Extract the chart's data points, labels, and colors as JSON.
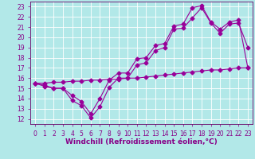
{
  "xlabel": "Windchill (Refroidissement éolien,°C)",
  "xlim": [
    -0.5,
    23.5
  ],
  "ylim": [
    11.5,
    23.5
  ],
  "xticks": [
    0,
    1,
    2,
    3,
    4,
    5,
    6,
    7,
    8,
    9,
    10,
    11,
    12,
    13,
    14,
    15,
    16,
    17,
    18,
    19,
    20,
    21,
    22,
    23
  ],
  "yticks": [
    12,
    13,
    14,
    15,
    16,
    17,
    18,
    19,
    20,
    21,
    22,
    23
  ],
  "bg_color": "#b2e8e8",
  "grid_color": "#ffffff",
  "line_color": "#990099",
  "line1_x": [
    0,
    1,
    2,
    3,
    4,
    5,
    6,
    7,
    8,
    9,
    10,
    11,
    12,
    13,
    14,
    15,
    16,
    17,
    18,
    19,
    20,
    21,
    22,
    23
  ],
  "line1_y": [
    15.5,
    15.2,
    15.0,
    15.0,
    13.8,
    13.3,
    12.1,
    13.2,
    15.1,
    16.0,
    16.0,
    17.3,
    17.5,
    18.7,
    19.0,
    20.8,
    20.9,
    21.9,
    22.9,
    21.4,
    20.4,
    21.3,
    21.4,
    19.0
  ],
  "line2_x": [
    0,
    1,
    2,
    3,
    4,
    5,
    6,
    7,
    8,
    9,
    10,
    11,
    12,
    13,
    14,
    15,
    16,
    17,
    18,
    19,
    20,
    21,
    22,
    23
  ],
  "line2_y": [
    15.5,
    15.3,
    15.0,
    15.0,
    14.3,
    13.7,
    12.5,
    14.0,
    15.8,
    16.5,
    16.5,
    17.9,
    18.0,
    19.2,
    19.4,
    21.1,
    21.3,
    22.9,
    23.1,
    21.5,
    20.8,
    21.5,
    21.7,
    17.0
  ],
  "line3_x": [
    0,
    1,
    2,
    3,
    4,
    5,
    6,
    7,
    8,
    9,
    10,
    11,
    12,
    13,
    14,
    15,
    16,
    17,
    18,
    19,
    20,
    21,
    22,
    23
  ],
  "line3_y": [
    15.5,
    15.5,
    15.6,
    15.6,
    15.7,
    15.7,
    15.8,
    15.8,
    15.9,
    15.9,
    16.0,
    16.0,
    16.1,
    16.2,
    16.3,
    16.4,
    16.5,
    16.6,
    16.7,
    16.8,
    16.8,
    16.9,
    17.0,
    17.0
  ],
  "marker": "D",
  "markersize": 2.5,
  "linewidth": 0.8,
  "tick_fontsize": 5.5,
  "xlabel_fontsize": 6.5,
  "label_color": "#880088"
}
